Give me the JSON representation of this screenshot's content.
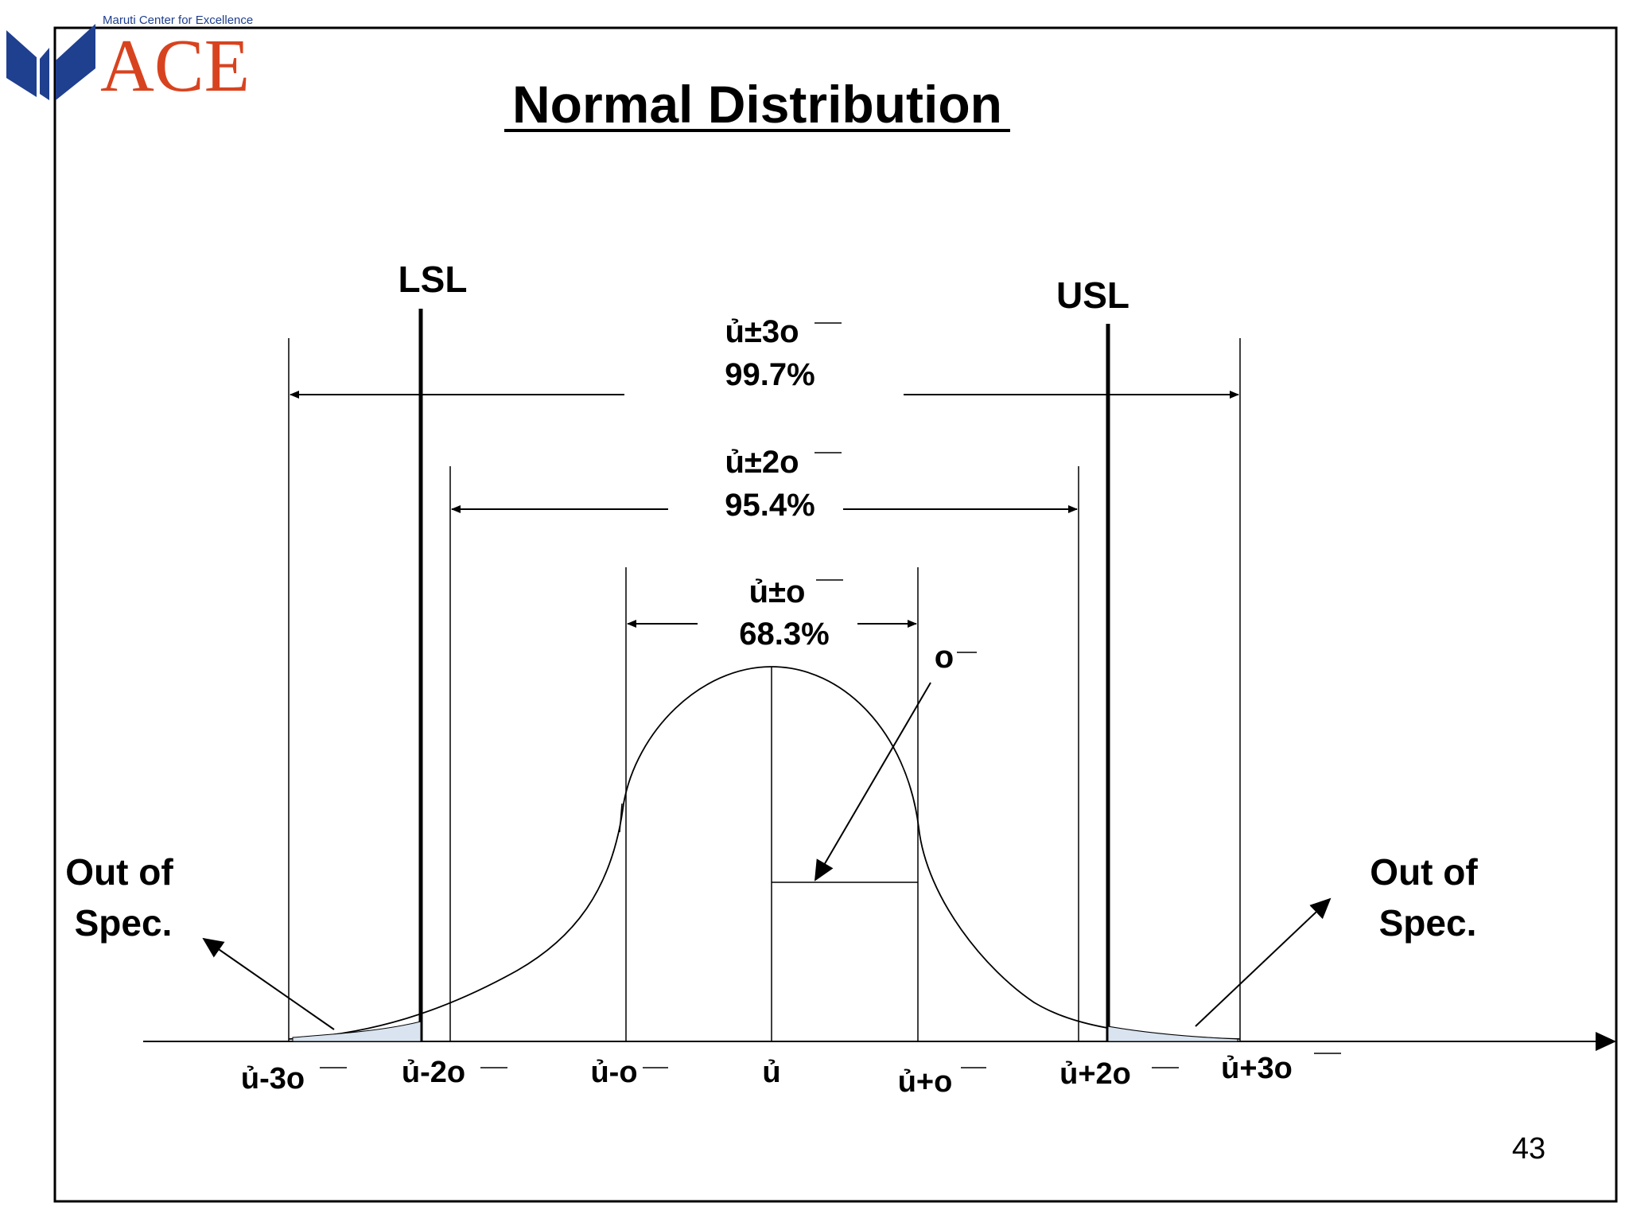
{
  "brand": {
    "tagline": "Maruti Center for Excellence",
    "name": "ACE",
    "colors": {
      "wing": "#1f3f8f",
      "text": "#d8431f"
    }
  },
  "title": "Normal Distribution",
  "limits": {
    "lsl": "LSL",
    "usl": "USL"
  },
  "ranges": [
    {
      "label": "ủ±3o",
      "percent": "99.7%"
    },
    {
      "label": "ủ±2o",
      "percent": "95.4%"
    },
    {
      "label": "ủ±o",
      "percent": "68.3%"
    }
  ],
  "sigma_label": "o",
  "axis_ticks": [
    "ủ-3o",
    "ủ-2o",
    "ủ-o",
    "ủ",
    "ủ+o",
    "ủ+2o",
    "ủ+3o"
  ],
  "out_of_spec": {
    "line1": "Out of",
    "line2": "Spec."
  },
  "page_number": "43"
}
